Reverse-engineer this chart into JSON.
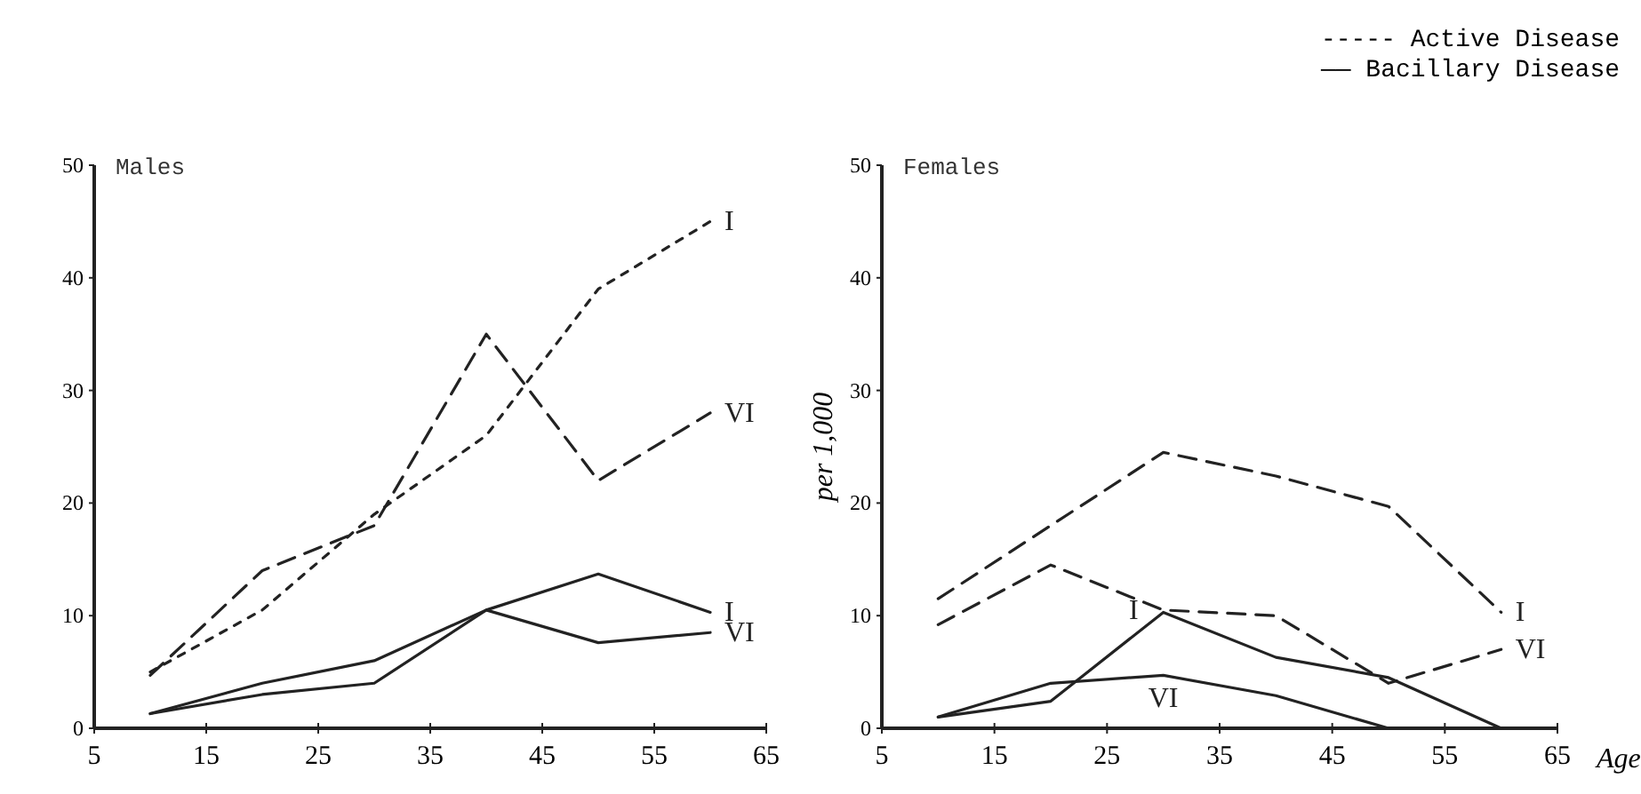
{
  "chart_data": [
    {
      "type": "line",
      "title": "Males",
      "x": [
        10,
        20,
        30,
        40,
        50,
        60
      ],
      "xlim": [
        5,
        65
      ],
      "xticks": [
        5,
        15,
        25,
        35,
        45,
        55,
        65
      ],
      "ylim": [
        0,
        50
      ],
      "yticks": [
        0,
        10,
        20,
        30,
        40,
        50
      ],
      "series": [
        {
          "name": "I",
          "color": "#222222",
          "line_style": "dotted",
          "values": [
            5,
            10.5,
            19,
            26,
            39,
            45
          ]
        },
        {
          "name": "VI",
          "color": "#222222",
          "line_style": "dashed",
          "values": [
            4.7,
            14,
            18,
            35,
            22,
            28
          ]
        },
        {
          "name": "I",
          "color": "#222222",
          "line_style": "solid",
          "values": [
            1.3,
            4,
            6,
            10.5,
            13.7,
            10.3
          ]
        },
        {
          "name": "VI",
          "color": "#222222",
          "line_style": "solid",
          "values": [
            1.3,
            3,
            4,
            10.5,
            7.6,
            8.5
          ]
        }
      ]
    },
    {
      "type": "line",
      "title": "Females",
      "ylabel": "per 1,000",
      "xlabel": "Age",
      "x": [
        10,
        20,
        30,
        40,
        50,
        60
      ],
      "xlim": [
        5,
        65
      ],
      "xticks": [
        5,
        15,
        25,
        35,
        45,
        55,
        65
      ],
      "ylim": [
        0,
        50
      ],
      "yticks": [
        0,
        10,
        20,
        30,
        40,
        50
      ],
      "annotations": [
        "----- Active Disease",
        "—— Bacillary Disease"
      ],
      "series": [
        {
          "name": "I",
          "color": "#222222",
          "line_style": "dashed",
          "values": [
            11.5,
            18,
            24.5,
            22.4,
            19.7,
            10.3
          ]
        },
        {
          "name": "VI",
          "color": "#222222",
          "line_style": "dashed",
          "values": [
            9.2,
            14.5,
            10.5,
            10,
            4,
            7
          ]
        },
        {
          "name": "I",
          "color": "#222222",
          "line_style": "solid",
          "values": [
            1,
            2.4,
            10.3,
            6.3,
            4.5,
            0
          ]
        },
        {
          "name": "VI",
          "color": "#222222",
          "line_style": "solid",
          "values": [
            1,
            4,
            4.7,
            2.9,
            0,
            null
          ]
        }
      ]
    }
  ]
}
